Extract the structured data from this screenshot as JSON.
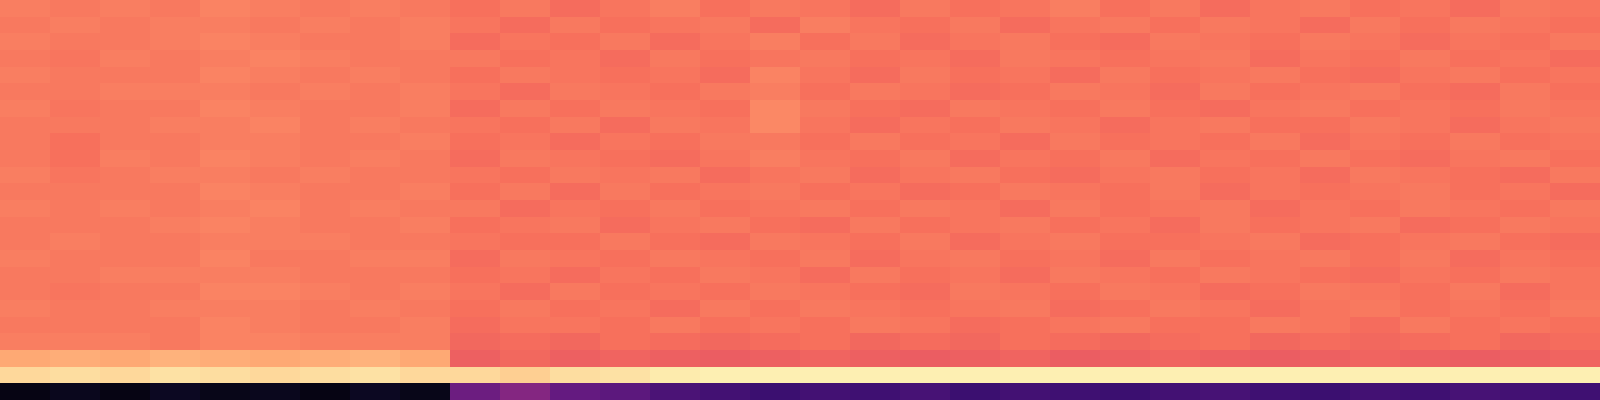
{
  "chart_data": {
    "type": "heatmap",
    "color": "magma",
    "zlim": [
      0,
      1
    ],
    "tick_labels": false,
    "z": [
      [
        0.73,
        0.72,
        0.73,
        0.72,
        0.74,
        0.73,
        0.72,
        0.73,
        0.72,
        0.7,
        0.72,
        0.69,
        0.71,
        0.73,
        0.7,
        0.72,
        0.71,
        0.69,
        0.72,
        0.7,
        0.71,
        0.73,
        0.7,
        0.72,
        0.69,
        0.71,
        0.72,
        0.7,
        0.71,
        0.69,
        0.72,
        0.71
      ],
      [
        0.72,
        0.73,
        0.72,
        0.73,
        0.73,
        0.72,
        0.73,
        0.72,
        0.73,
        0.71,
        0.69,
        0.72,
        0.7,
        0.71,
        0.72,
        0.69,
        0.73,
        0.71,
        0.7,
        0.72,
        0.69,
        0.71,
        0.72,
        0.7,
        0.72,
        0.71,
        0.69,
        0.72,
        0.7,
        0.72,
        0.71,
        0.7
      ],
      [
        0.73,
        0.72,
        0.72,
        0.73,
        0.74,
        0.73,
        0.72,
        0.72,
        0.73,
        0.69,
        0.71,
        0.7,
        0.72,
        0.69,
        0.71,
        0.73,
        0.7,
        0.72,
        0.69,
        0.71,
        0.72,
        0.7,
        0.69,
        0.72,
        0.71,
        0.7,
        0.72,
        0.71,
        0.69,
        0.71,
        0.7,
        0.72
      ],
      [
        0.72,
        0.71,
        0.73,
        0.72,
        0.73,
        0.74,
        0.73,
        0.72,
        0.72,
        0.72,
        0.7,
        0.71,
        0.69,
        0.72,
        0.7,
        0.71,
        0.72,
        0.7,
        0.71,
        0.69,
        0.72,
        0.71,
        0.7,
        0.71,
        0.72,
        0.69,
        0.71,
        0.7,
        0.72,
        0.7,
        0.71,
        0.69
      ],
      [
        0.73,
        0.72,
        0.72,
        0.72,
        0.74,
        0.73,
        0.72,
        0.73,
        0.72,
        0.7,
        0.72,
        0.71,
        0.7,
        0.71,
        0.69,
        0.74,
        0.71,
        0.69,
        0.72,
        0.7,
        0.71,
        0.69,
        0.72,
        0.7,
        0.71,
        0.72,
        0.7,
        0.69,
        0.71,
        0.72,
        0.7,
        0.71
      ],
      [
        0.72,
        0.72,
        0.73,
        0.73,
        0.73,
        0.72,
        0.73,
        0.72,
        0.73,
        0.71,
        0.69,
        0.72,
        0.71,
        0.7,
        0.72,
        0.73,
        0.7,
        0.72,
        0.71,
        0.69,
        0.7,
        0.72,
        0.71,
        0.69,
        0.72,
        0.7,
        0.71,
        0.72,
        0.7,
        0.69,
        0.72,
        0.7
      ],
      [
        0.73,
        0.71,
        0.72,
        0.72,
        0.74,
        0.73,
        0.72,
        0.72,
        0.73,
        0.69,
        0.72,
        0.7,
        0.72,
        0.71,
        0.7,
        0.75,
        0.72,
        0.7,
        0.69,
        0.72,
        0.71,
        0.7,
        0.72,
        0.7,
        0.69,
        0.71,
        0.72,
        0.7,
        0.71,
        0.7,
        0.72,
        0.71
      ],
      [
        0.72,
        0.72,
        0.72,
        0.73,
        0.73,
        0.74,
        0.72,
        0.73,
        0.72,
        0.71,
        0.7,
        0.72,
        0.69,
        0.72,
        0.71,
        0.75,
        0.71,
        0.69,
        0.71,
        0.7,
        0.72,
        0.71,
        0.69,
        0.71,
        0.72,
        0.7,
        0.7,
        0.72,
        0.71,
        0.69,
        0.71,
        0.72
      ],
      [
        0.72,
        0.7,
        0.72,
        0.72,
        0.73,
        0.73,
        0.72,
        0.72,
        0.73,
        0.7,
        0.71,
        0.69,
        0.71,
        0.7,
        0.72,
        0.72,
        0.7,
        0.72,
        0.7,
        0.71,
        0.69,
        0.72,
        0.7,
        0.71,
        0.7,
        0.72,
        0.69,
        0.71,
        0.7,
        0.72,
        0.7,
        0.71
      ],
      [
        0.72,
        0.7,
        0.73,
        0.72,
        0.74,
        0.73,
        0.72,
        0.73,
        0.72,
        0.69,
        0.72,
        0.71,
        0.7,
        0.69,
        0.71,
        0.73,
        0.71,
        0.7,
        0.72,
        0.69,
        0.71,
        0.7,
        0.72,
        0.69,
        0.71,
        0.7,
        0.72,
        0.7,
        0.69,
        0.71,
        0.72,
        0.7
      ],
      [
        0.73,
        0.71,
        0.72,
        0.73,
        0.73,
        0.72,
        0.73,
        0.72,
        0.72,
        0.71,
        0.7,
        0.72,
        0.71,
        0.72,
        0.69,
        0.71,
        0.72,
        0.69,
        0.71,
        0.72,
        0.7,
        0.69,
        0.71,
        0.72,
        0.7,
        0.71,
        0.69,
        0.72,
        0.71,
        0.7,
        0.69,
        0.72
      ],
      [
        0.72,
        0.72,
        0.72,
        0.72,
        0.74,
        0.73,
        0.72,
        0.72,
        0.73,
        0.7,
        0.72,
        0.69,
        0.72,
        0.7,
        0.71,
        0.72,
        0.7,
        0.71,
        0.69,
        0.7,
        0.72,
        0.71,
        0.7,
        0.72,
        0.69,
        0.71,
        0.7,
        0.71,
        0.72,
        0.7,
        0.71,
        0.69
      ],
      [
        0.73,
        0.72,
        0.73,
        0.72,
        0.73,
        0.74,
        0.72,
        0.73,
        0.72,
        0.72,
        0.69,
        0.71,
        0.7,
        0.72,
        0.7,
        0.71,
        0.72,
        0.7,
        0.72,
        0.71,
        0.69,
        0.72,
        0.7,
        0.71,
        0.72,
        0.69,
        0.71,
        0.7,
        0.72,
        0.71,
        0.7,
        0.72
      ],
      [
        0.72,
        0.72,
        0.72,
        0.73,
        0.74,
        0.73,
        0.72,
        0.72,
        0.73,
        0.7,
        0.71,
        0.72,
        0.69,
        0.71,
        0.72,
        0.7,
        0.69,
        0.72,
        0.7,
        0.71,
        0.72,
        0.7,
        0.71,
        0.69,
        0.72,
        0.7,
        0.71,
        0.72,
        0.69,
        0.7,
        0.72,
        0.71
      ],
      [
        0.72,
        0.73,
        0.72,
        0.72,
        0.73,
        0.73,
        0.73,
        0.72,
        0.72,
        0.71,
        0.7,
        0.7,
        0.72,
        0.7,
        0.69,
        0.72,
        0.71,
        0.7,
        0.72,
        0.69,
        0.71,
        0.72,
        0.7,
        0.7,
        0.71,
        0.72,
        0.69,
        0.7,
        0.71,
        0.72,
        0.7,
        0.69
      ],
      [
        0.73,
        0.72,
        0.72,
        0.72,
        0.74,
        0.72,
        0.72,
        0.73,
        0.73,
        0.69,
        0.72,
        0.71,
        0.7,
        0.72,
        0.71,
        0.7,
        0.72,
        0.69,
        0.71,
        0.72,
        0.7,
        0.71,
        0.69,
        0.72,
        0.7,
        0.71,
        0.72,
        0.7,
        0.72,
        0.69,
        0.71,
        0.7
      ],
      [
        0.72,
        0.72,
        0.73,
        0.73,
        0.73,
        0.73,
        0.72,
        0.72,
        0.72,
        0.7,
        0.71,
        0.69,
        0.71,
        0.7,
        0.72,
        0.71,
        0.69,
        0.72,
        0.7,
        0.71,
        0.69,
        0.72,
        0.71,
        0.7,
        0.72,
        0.71,
        0.7,
        0.69,
        0.71,
        0.7,
        0.72,
        0.71
      ],
      [
        0.72,
        0.71,
        0.72,
        0.72,
        0.74,
        0.74,
        0.73,
        0.72,
        0.73,
        0.71,
        0.69,
        0.72,
        0.7,
        0.71,
        0.7,
        0.72,
        0.71,
        0.7,
        0.69,
        0.72,
        0.71,
        0.7,
        0.72,
        0.71,
        0.69,
        0.7,
        0.72,
        0.71,
        0.7,
        0.72,
        0.69,
        0.71
      ],
      [
        0.73,
        0.72,
        0.72,
        0.73,
        0.73,
        0.73,
        0.72,
        0.73,
        0.72,
        0.7,
        0.72,
        0.7,
        0.71,
        0.69,
        0.72,
        0.7,
        0.72,
        0.71,
        0.7,
        0.71,
        0.72,
        0.69,
        0.7,
        0.72,
        0.71,
        0.69,
        0.71,
        0.72,
        0.7,
        0.71,
        0.7,
        0.72
      ],
      [
        0.72,
        0.72,
        0.72,
        0.72,
        0.74,
        0.73,
        0.72,
        0.72,
        0.73,
        0.69,
        0.71,
        0.71,
        0.7,
        0.72,
        0.7,
        0.71,
        0.7,
        0.72,
        0.71,
        0.69,
        0.7,
        0.71,
        0.72,
        0.7,
        0.7,
        0.72,
        0.71,
        0.69,
        0.72,
        0.7,
        0.71,
        0.7
      ],
      [
        0.73,
        0.73,
        0.73,
        0.72,
        0.74,
        0.74,
        0.73,
        0.73,
        0.73,
        0.68,
        0.69,
        0.68,
        0.7,
        0.69,
        0.68,
        0.69,
        0.7,
        0.68,
        0.69,
        0.68,
        0.7,
        0.69,
        0.68,
        0.69,
        0.7,
        0.68,
        0.69,
        0.68,
        0.69,
        0.7,
        0.68,
        0.69
      ],
      [
        0.82,
        0.83,
        0.82,
        0.84,
        0.83,
        0.82,
        0.83,
        0.84,
        0.82,
        0.66,
        0.68,
        0.66,
        0.67,
        0.66,
        0.65,
        0.66,
        0.67,
        0.66,
        0.65,
        0.66,
        0.67,
        0.65,
        0.66,
        0.67,
        0.66,
        0.65,
        0.66,
        0.67,
        0.66,
        0.65,
        0.66,
        0.67
      ],
      [
        0.92,
        0.93,
        0.92,
        0.94,
        0.93,
        0.92,
        0.93,
        0.94,
        0.92,
        0.92,
        0.9,
        0.93,
        0.94,
        0.96,
        0.97,
        0.97,
        0.97,
        0.97,
        0.97,
        0.97,
        0.97,
        0.97,
        0.97,
        0.97,
        0.97,
        0.97,
        0.97,
        0.97,
        0.97,
        0.97,
        0.97,
        0.97
      ],
      [
        0.03,
        0.05,
        0.03,
        0.06,
        0.04,
        0.05,
        0.03,
        0.06,
        0.04,
        0.32,
        0.38,
        0.3,
        0.28,
        0.24,
        0.22,
        0.2,
        0.22,
        0.21,
        0.23,
        0.2,
        0.22,
        0.21,
        0.2,
        0.22,
        0.23,
        0.21,
        0.2,
        0.22,
        0.21,
        0.23,
        0.22,
        0.21
      ]
    ]
  }
}
